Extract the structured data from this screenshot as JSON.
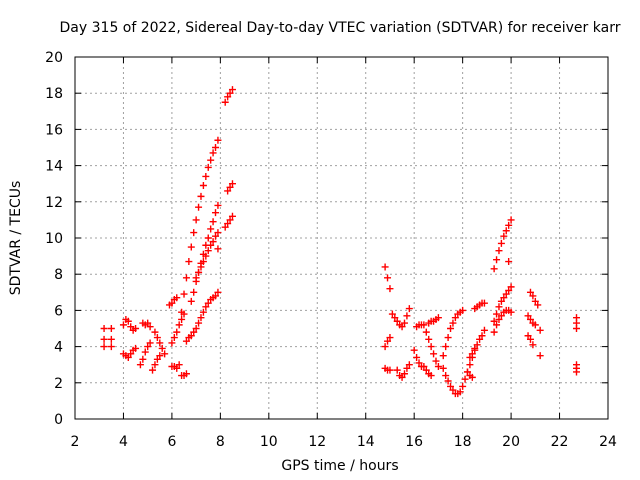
{
  "chart_data": {
    "type": "scatter",
    "title": "Day 315 of 2022, Sidereal Day-to-day VTEC variation (SDTVAR) for receiver karr",
    "xlabel": "GPS time / hours",
    "ylabel": "SDTVAR / TECUs",
    "xlim": [
      2,
      24
    ],
    "ylim": [
      0,
      20
    ],
    "xticks": [
      "2",
      "4",
      "6",
      "8",
      "10",
      "12",
      "14",
      "16",
      "18",
      "20",
      "22",
      "24"
    ],
    "yticks": [
      "0",
      "2",
      "4",
      "6",
      "8",
      "10",
      "12",
      "14",
      "16",
      "18",
      "20"
    ],
    "grid": true,
    "marker": "plus",
    "color": "#ff0000",
    "series": [
      {
        "name": "seg1",
        "x": [
          3.2,
          3.2,
          3.2,
          3.5,
          3.5,
          3.5
        ],
        "y": [
          5.0,
          4.4,
          4.0,
          5.0,
          4.4,
          4.0
        ]
      },
      {
        "name": "seg2",
        "x": [
          4.0,
          4.1,
          4.2,
          4.3,
          4.4,
          4.5
        ],
        "y": [
          5.2,
          5.5,
          5.4,
          5.1,
          4.9,
          5.0
        ]
      },
      {
        "name": "seg3",
        "x": [
          4.0,
          4.1,
          4.2,
          4.3,
          4.4,
          4.5
        ],
        "y": [
          3.6,
          3.5,
          3.4,
          3.6,
          3.8,
          3.9
        ]
      },
      {
        "name": "seg4",
        "x": [
          4.8,
          4.9,
          5.0,
          5.1
        ],
        "y": [
          5.3,
          5.2,
          5.3,
          5.1
        ]
      },
      {
        "name": "seg5",
        "x": [
          4.7,
          4.8,
          4.9,
          5.0,
          5.1
        ],
        "y": [
          3.0,
          3.3,
          3.7,
          4.0,
          4.2
        ]
      },
      {
        "name": "seg6",
        "x": [
          5.3,
          5.4,
          5.5,
          5.6,
          5.7
        ],
        "y": [
          4.8,
          4.5,
          4.2,
          3.9,
          3.6
        ]
      },
      {
        "name": "seg7",
        "x": [
          5.2,
          5.3,
          5.4,
          5.5
        ],
        "y": [
          2.7,
          3.0,
          3.3,
          3.5
        ]
      },
      {
        "name": "seg8",
        "x": [
          5.9,
          6.0,
          6.1,
          6.2
        ],
        "y": [
          6.3,
          6.4,
          6.6,
          6.7
        ]
      },
      {
        "name": "seg9",
        "x": [
          6.0,
          6.1,
          6.2,
          6.3
        ],
        "y": [
          2.9,
          2.9,
          2.8,
          3.0
        ]
      },
      {
        "name": "seg10",
        "x": [
          6.4,
          6.5,
          6.6
        ],
        "y": [
          2.4,
          2.4,
          2.5
        ]
      },
      {
        "name": "seg11",
        "x": [
          6.0,
          6.1,
          6.2,
          6.3,
          6.4,
          6.5
        ],
        "y": [
          4.2,
          4.5,
          4.8,
          5.2,
          5.5,
          5.8
        ]
      },
      {
        "name": "seg12",
        "x": [
          6.4,
          6.5,
          6.6,
          6.7,
          6.8,
          6.9,
          7.0,
          7.1,
          7.2,
          7.3,
          7.4,
          7.5,
          7.6,
          7.7,
          7.8,
          7.9
        ],
        "y": [
          5.9,
          6.9,
          7.8,
          8.7,
          9.5,
          10.3,
          11.0,
          11.7,
          12.3,
          12.9,
          13.4,
          13.9,
          14.3,
          14.7,
          15.0,
          15.4
        ]
      },
      {
        "name": "seg13",
        "x": [
          6.8,
          6.9,
          7.0,
          7.1,
          7.2,
          7.3,
          7.4,
          7.5,
          7.6,
          7.7,
          7.8,
          7.9
        ],
        "y": [
          6.5,
          7.0,
          7.6,
          8.1,
          8.6,
          9.1,
          9.6,
          10.0,
          10.5,
          10.9,
          11.4,
          11.8
        ]
      },
      {
        "name": "seg14",
        "x": [
          7.0,
          7.1,
          7.2,
          7.3,
          7.4,
          7.5,
          7.6,
          7.7,
          7.8,
          7.9
        ],
        "y": [
          7.8,
          8.1,
          8.4,
          8.7,
          9.0,
          9.3,
          9.6,
          9.8,
          10.1,
          10.3
        ]
      },
      {
        "name": "seg15",
        "x": [
          6.6,
          6.7,
          6.8,
          6.9,
          7.0,
          7.1,
          7.2,
          7.3,
          7.4,
          7.5,
          7.6,
          7.7,
          7.8,
          7.9
        ],
        "y": [
          4.3,
          4.5,
          4.6,
          4.8,
          5.0,
          5.3,
          5.6,
          5.9,
          6.2,
          6.4,
          6.6,
          6.7,
          6.8,
          7.0
        ]
      },
      {
        "name": "seg16",
        "x": [
          7.9
        ],
        "y": [
          9.4
        ]
      },
      {
        "name": "seg17",
        "x": [
          8.2,
          8.3,
          8.4,
          8.5
        ],
        "y": [
          17.5,
          17.8,
          18.0,
          18.2
        ]
      },
      {
        "name": "seg18",
        "x": [
          8.3,
          8.4,
          8.5
        ],
        "y": [
          12.6,
          12.8,
          13.0
        ]
      },
      {
        "name": "seg19",
        "x": [
          8.2,
          8.3,
          8.4,
          8.5
        ],
        "y": [
          10.6,
          10.8,
          11.0,
          11.2
        ]
      },
      {
        "name": "seg20",
        "x": [
          14.8,
          14.9,
          15.0
        ],
        "y": [
          8.4,
          7.8,
          7.2
        ]
      },
      {
        "name": "seg21",
        "x": [
          14.8,
          14.9,
          15.0
        ],
        "y": [
          4.0,
          4.3,
          4.5
        ]
      },
      {
        "name": "seg22",
        "x": [
          14.8,
          14.9,
          15.0
        ],
        "y": [
          2.8,
          2.7,
          2.7
        ]
      },
      {
        "name": "seg23",
        "x": [
          15.1,
          15.2,
          15.3,
          15.4,
          15.5,
          15.6,
          15.7,
          15.8
        ],
        "y": [
          5.8,
          5.6,
          5.4,
          5.2,
          5.1,
          5.3,
          5.7,
          6.1
        ]
      },
      {
        "name": "seg24",
        "x": [
          15.3,
          15.4,
          15.5,
          15.6,
          15.7,
          15.8
        ],
        "y": [
          2.7,
          2.4,
          2.3,
          2.5,
          2.8,
          3.0
        ]
      },
      {
        "name": "seg25",
        "x": [
          16.1,
          16.2,
          16.3
        ],
        "y": [
          5.1,
          5.2,
          5.2
        ]
      },
      {
        "name": "seg26",
        "x": [
          16.0,
          16.1,
          16.2,
          16.3
        ],
        "y": [
          3.8,
          3.4,
          3.1,
          2.9
        ]
      },
      {
        "name": "seg27",
        "x": [
          16.4,
          16.5,
          16.6,
          16.7,
          16.8,
          16.9,
          17.0
        ],
        "y": [
          5.2,
          4.8,
          4.4,
          4.0,
          3.6,
          3.2,
          2.9
        ]
      },
      {
        "name": "seg28",
        "x": [
          16.6,
          16.7,
          16.8,
          16.9,
          17.0
        ],
        "y": [
          5.3,
          5.4,
          5.4,
          5.5,
          5.6
        ]
      },
      {
        "name": "seg29",
        "x": [
          16.4,
          16.5,
          16.6,
          16.7
        ],
        "y": [
          2.9,
          2.7,
          2.5,
          2.4
        ]
      },
      {
        "name": "seg30",
        "x": [
          17.2,
          17.3,
          17.4,
          17.5,
          17.6,
          17.7,
          17.8,
          17.9,
          18.0
        ],
        "y": [
          3.5,
          4.0,
          4.5,
          5.0,
          5.3,
          5.6,
          5.8,
          5.9,
          6.0
        ]
      },
      {
        "name": "seg31",
        "x": [
          17.2,
          17.3,
          17.4,
          17.5,
          17.6,
          17.7,
          17.8,
          17.9,
          18.0,
          18.1,
          18.2,
          18.3,
          18.4,
          18.5
        ],
        "y": [
          2.8,
          2.4,
          2.1,
          1.8,
          1.6,
          1.4,
          1.4,
          1.5,
          1.8,
          2.2,
          2.6,
          3.0,
          3.4,
          3.8
        ]
      },
      {
        "name": "seg32",
        "x": [
          18.2,
          18.3,
          18.4
        ],
        "y": [
          2.6,
          2.4,
          2.3
        ]
      },
      {
        "name": "seg33",
        "x": [
          18.3,
          18.4,
          18.5,
          18.6,
          18.7,
          18.8,
          18.9
        ],
        "y": [
          3.4,
          3.6,
          3.9,
          4.1,
          4.4,
          4.6,
          4.9
        ]
      },
      {
        "name": "seg34",
        "x": [
          18.5,
          18.6,
          18.7,
          18.8,
          18.9
        ],
        "y": [
          6.1,
          6.2,
          6.3,
          6.4,
          6.4
        ]
      },
      {
        "name": "seg35",
        "x": [
          19.3,
          19.4,
          19.5,
          19.6,
          19.7,
          19.8,
          19.9,
          20.0
        ],
        "y": [
          8.3,
          8.8,
          9.3,
          9.7,
          10.1,
          10.4,
          10.7,
          11.0
        ]
      },
      {
        "name": "seg36",
        "x": [
          19.3,
          19.4,
          19.5,
          19.6,
          19.7,
          19.8,
          19.9,
          20.0
        ],
        "y": [
          5.4,
          5.8,
          6.2,
          6.5,
          6.7,
          6.9,
          7.1,
          7.3
        ]
      },
      {
        "name": "seg37",
        "x": [
          19.3,
          19.4,
          19.5,
          19.6,
          19.7,
          19.8,
          19.9,
          20.0
        ],
        "y": [
          4.8,
          5.2,
          5.5,
          5.7,
          5.9,
          6.0,
          6.0,
          5.9
        ]
      },
      {
        "name": "seg38",
        "x": [
          19.9
        ],
        "y": [
          8.7
        ]
      },
      {
        "name": "seg39",
        "x": [
          20.8,
          20.9,
          21.0,
          21.1
        ],
        "y": [
          7.0,
          6.8,
          6.5,
          6.3
        ]
      },
      {
        "name": "seg40",
        "x": [
          20.7,
          20.8,
          20.9,
          21.0
        ],
        "y": [
          5.7,
          5.5,
          5.3,
          5.2
        ]
      },
      {
        "name": "seg41",
        "x": [
          20.7,
          20.8,
          20.9
        ],
        "y": [
          4.6,
          4.4,
          4.1
        ]
      },
      {
        "name": "seg42",
        "x": [
          21.2
        ],
        "y": [
          4.9
        ]
      },
      {
        "name": "seg43",
        "x": [
          21.2
        ],
        "y": [
          3.5
        ]
      },
      {
        "name": "seg44",
        "x": [
          22.7,
          22.7,
          22.7
        ],
        "y": [
          5.6,
          5.3,
          5.0
        ]
      },
      {
        "name": "seg45",
        "x": [
          22.7,
          22.7,
          22.7
        ],
        "y": [
          3.0,
          2.8,
          2.6
        ]
      }
    ]
  }
}
